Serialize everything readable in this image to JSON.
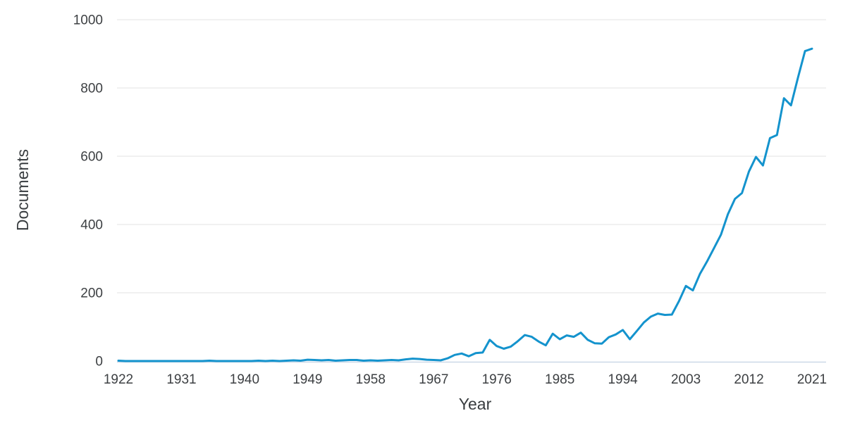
{
  "chart_data": {
    "type": "line",
    "title": "",
    "xlabel": "Year",
    "ylabel": "Documents",
    "xlim": [
      1922,
      2021
    ],
    "ylim": [
      0,
      1000
    ],
    "x_ticks": [
      1922,
      1931,
      1940,
      1949,
      1958,
      1967,
      1976,
      1985,
      1994,
      2003,
      2012,
      2021
    ],
    "y_ticks": [
      0,
      200,
      400,
      600,
      800,
      1000
    ],
    "grid": "horizontal",
    "legend": "none",
    "series": [
      {
        "name": "Documents",
        "x_start": 1922,
        "x_step": 1,
        "x": [
          1922,
          1923,
          1924,
          1925,
          1926,
          1927,
          1928,
          1929,
          1930,
          1931,
          1932,
          1933,
          1934,
          1935,
          1936,
          1937,
          1938,
          1939,
          1940,
          1941,
          1942,
          1943,
          1944,
          1945,
          1946,
          1947,
          1948,
          1949,
          1950,
          1951,
          1952,
          1953,
          1954,
          1955,
          1956,
          1957,
          1958,
          1959,
          1960,
          1961,
          1962,
          1963,
          1964,
          1965,
          1966,
          1967,
          1968,
          1969,
          1970,
          1971,
          1972,
          1973,
          1974,
          1975,
          1976,
          1977,
          1978,
          1979,
          1980,
          1981,
          1982,
          1983,
          1984,
          1985,
          1986,
          1987,
          1988,
          1989,
          1990,
          1991,
          1992,
          1993,
          1994,
          1995,
          1996,
          1997,
          1998,
          1999,
          2000,
          2001,
          2002,
          2003,
          2004,
          2005,
          2006,
          2007,
          2008,
          2009,
          2010,
          2011,
          2012,
          2013,
          2014,
          2015,
          2016,
          2017,
          2018,
          2019,
          2020,
          2021
        ],
        "values": [
          1,
          0,
          0,
          0,
          0,
          0,
          0,
          0,
          0,
          0,
          0,
          0,
          0,
          1,
          0,
          0,
          0,
          0,
          0,
          0,
          1,
          0,
          1,
          0,
          1,
          2,
          1,
          4,
          3,
          2,
          3,
          1,
          2,
          3,
          3,
          1,
          2,
          1,
          2,
          3,
          2,
          5,
          7,
          6,
          4,
          3,
          2,
          8,
          18,
          22,
          14,
          23,
          25,
          62,
          44,
          36,
          42,
          58,
          76,
          71,
          57,
          46,
          80,
          64,
          75,
          71,
          83,
          62,
          52,
          51,
          70,
          78,
          91,
          64,
          88,
          113,
          130,
          139,
          135,
          136,
          175,
          220,
          207,
          255,
          291,
          330,
          370,
          430,
          475,
          492,
          555,
          598,
          573,
          653,
          662,
          770,
          749,
          830,
          908,
          915
        ]
      }
    ]
  },
  "colors": {
    "line": "#1493cd",
    "gridline": "#e3e3e3",
    "axis_line": "#ccd8e7",
    "tick_text": "#3d4043",
    "title_text": "#393d40",
    "background": "#ffffff"
  }
}
